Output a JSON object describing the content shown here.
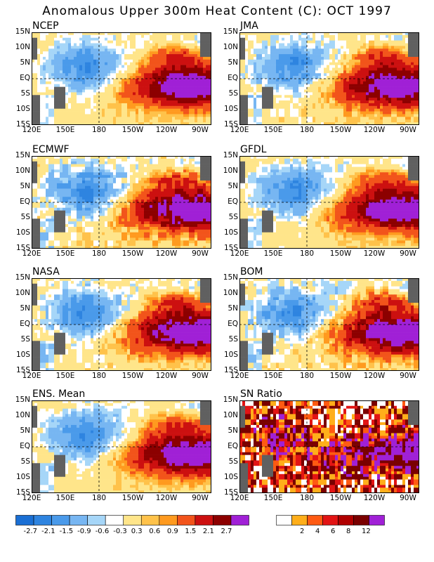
{
  "title": "Anomalous Upper 300m Heat Content (C): OCT 1997",
  "palette": {
    "neg": [
      "#1a6fd4",
      "#2e84e0",
      "#4a9aea",
      "#77b6f2",
      "#a6d6f8"
    ],
    "neutral": "#ffffff",
    "pos": [
      "#ffe58a",
      "#ffc24a",
      "#ff9a1f",
      "#f2541b",
      "#cc1010",
      "#8c0000",
      "#a020d6"
    ],
    "ratio": [
      "#ffffff",
      "#ffae1a",
      "#ff5a12",
      "#e21414",
      "#b00000",
      "#7a0000",
      "#a020d6"
    ],
    "land": "#606060"
  },
  "colorbar_anomaly": {
    "labels": [
      "-2.7",
      "-2.1",
      "-1.5",
      "-0.9",
      "-0.6",
      "-0.3",
      "0.3",
      "0.6",
      "0.9",
      "1.5",
      "2.1",
      "2.7"
    ]
  },
  "colorbar_ratio": {
    "labels": [
      "2",
      "4",
      "6",
      "8",
      "12"
    ]
  },
  "chart_data": [
    {
      "type": "heatmap",
      "title": "NCEP",
      "variant": 0,
      "x_ticks": [
        "120E",
        "150E",
        "180",
        "150W",
        "120W",
        "90W"
      ],
      "y_ticks": [
        "15N",
        "10N",
        "5N",
        "EQ",
        "5S",
        "10S",
        "15S"
      ],
      "xlim": [
        120,
        280
      ],
      "ylim": [
        -15,
        15
      ],
      "units": "C"
    },
    {
      "type": "heatmap",
      "title": "JMA",
      "variant": 1,
      "x_ticks": [
        "120E",
        "150E",
        "180",
        "150W",
        "120W",
        "90W"
      ],
      "y_ticks": [
        "15N",
        "10N",
        "5N",
        "EQ",
        "5S",
        "10S",
        "15S"
      ],
      "xlim": [
        120,
        280
      ],
      "ylim": [
        -15,
        15
      ],
      "units": "C"
    },
    {
      "type": "heatmap",
      "title": "ECMWF",
      "variant": 2,
      "x_ticks": [
        "120E",
        "150E",
        "180",
        "150W",
        "120W",
        "90W"
      ],
      "y_ticks": [
        "15N",
        "10N",
        "5N",
        "EQ",
        "5S",
        "10S",
        "15S"
      ],
      "xlim": [
        120,
        280
      ],
      "ylim": [
        -15,
        15
      ],
      "units": "C"
    },
    {
      "type": "heatmap",
      "title": "GFDL",
      "variant": 3,
      "x_ticks": [
        "120E",
        "150E",
        "180",
        "150W",
        "120W",
        "90W"
      ],
      "y_ticks": [
        "15N",
        "10N",
        "5N",
        "EQ",
        "5S",
        "10S",
        "15S"
      ],
      "xlim": [
        120,
        280
      ],
      "ylim": [
        -15,
        15
      ],
      "units": "C"
    },
    {
      "type": "heatmap",
      "title": "NASA",
      "variant": 4,
      "x_ticks": [
        "120E",
        "150E",
        "180",
        "150W",
        "120W",
        "90W"
      ],
      "y_ticks": [
        "15N",
        "10N",
        "5N",
        "EQ",
        "5S",
        "10S",
        "15S"
      ],
      "xlim": [
        120,
        280
      ],
      "ylim": [
        -15,
        15
      ],
      "units": "C"
    },
    {
      "type": "heatmap",
      "title": "BOM",
      "variant": 5,
      "x_ticks": [
        "120E",
        "150E",
        "180",
        "150W",
        "120W",
        "90W"
      ],
      "y_ticks": [
        "15N",
        "10N",
        "5N",
        "EQ",
        "5S",
        "10S",
        "15S"
      ],
      "xlim": [
        120,
        280
      ],
      "ylim": [
        -15,
        15
      ],
      "units": "C"
    },
    {
      "type": "heatmap",
      "title": "ENS. Mean",
      "variant": 6,
      "x_ticks": [
        "120E",
        "150E",
        "180",
        "150W",
        "120W",
        "90W"
      ],
      "y_ticks": [
        "15N",
        "10N",
        "5N",
        "EQ",
        "5S",
        "10S",
        "15S"
      ],
      "xlim": [
        120,
        280
      ],
      "ylim": [
        -15,
        15
      ],
      "units": "C"
    },
    {
      "type": "heatmap",
      "title": "SN Ratio",
      "variant": 7,
      "x_ticks": [
        "120E",
        "150E",
        "180",
        "150W",
        "120W",
        "90W"
      ],
      "y_ticks": [
        "15N",
        "10N",
        "5N",
        "EQ",
        "5S",
        "10S",
        "15S"
      ],
      "xlim": [
        120,
        280
      ],
      "ylim": [
        -15,
        15
      ],
      "units": "ratio"
    }
  ]
}
